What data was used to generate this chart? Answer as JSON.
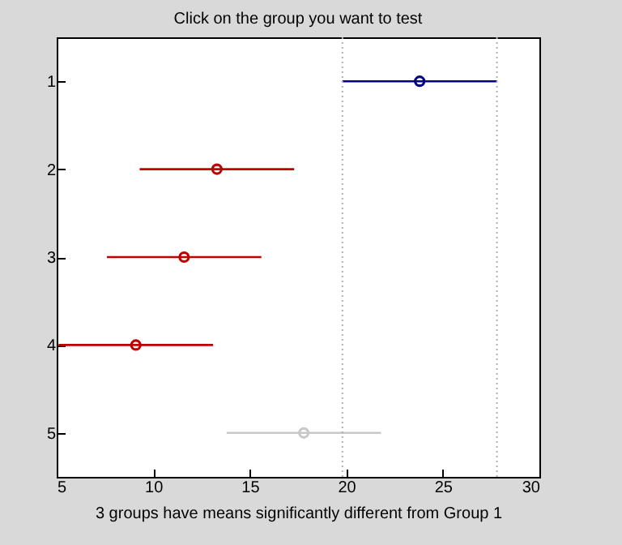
{
  "chart_data": {
    "type": "scatter",
    "orientation": "horizontal",
    "title": "Click on the group you want to test",
    "xlabel": "3 groups have means significantly different from Group 1",
    "categories": [
      "1",
      "2",
      "3",
      "4",
      "5"
    ],
    "values": [
      23.8,
      13.3,
      11.6,
      9.1,
      17.8
    ],
    "errors": [
      [
        19.8,
        27.8
      ],
      [
        9.3,
        17.3
      ],
      [
        7.6,
        15.6
      ],
      [
        5.1,
        13.1
      ],
      [
        13.8,
        21.8
      ]
    ],
    "colors": [
      "#000080",
      "#c00000",
      "#c00000",
      "#c00000",
      "#c8c8c8"
    ],
    "marker": "circle",
    "xlim": [
      5,
      30
    ],
    "xticks": [
      5,
      10,
      15,
      20,
      25,
      30
    ],
    "ref_lines": [
      {
        "axis": "x",
        "value": 19.8,
        "color": "#b0b0b0",
        "line_style": "dotted"
      },
      {
        "axis": "x",
        "value": 27.8,
        "color": "#b0b0b0",
        "line_style": "dotted"
      }
    ],
    "grid": false
  }
}
